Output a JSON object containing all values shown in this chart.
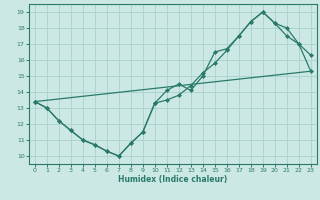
{
  "xlabel": "Humidex (Indice chaleur)",
  "bg_color": "#cce8e4",
  "line_color": "#2a7a6a",
  "grid_color": "#aed4d0",
  "xlim": [
    -0.5,
    23.5
  ],
  "ylim": [
    9.5,
    19.5
  ],
  "xticks": [
    0,
    1,
    2,
    3,
    4,
    5,
    6,
    7,
    8,
    9,
    10,
    11,
    12,
    13,
    14,
    15,
    16,
    17,
    18,
    19,
    20,
    21,
    22,
    23
  ],
  "yticks": [
    10,
    11,
    12,
    13,
    14,
    15,
    16,
    17,
    18,
    19
  ],
  "line1_x": [
    0,
    1,
    2,
    3,
    4,
    5,
    6,
    7,
    8,
    9,
    10,
    11,
    12,
    13,
    14,
    15,
    16,
    17,
    18,
    19,
    20,
    21,
    22,
    23
  ],
  "line1_y": [
    13.4,
    13.0,
    12.2,
    11.6,
    11.0,
    10.7,
    10.3,
    10.0,
    10.8,
    11.5,
    13.3,
    14.1,
    14.5,
    14.1,
    15.0,
    16.5,
    16.7,
    17.5,
    18.4,
    19.0,
    18.3,
    18.0,
    17.0,
    16.3
  ],
  "line2_x": [
    0,
    1,
    2,
    3,
    4,
    5,
    6,
    7,
    8,
    9,
    10,
    11,
    12,
    13,
    14,
    15,
    16,
    17,
    18,
    19,
    20,
    21,
    22,
    23
  ],
  "line2_y": [
    13.4,
    13.0,
    12.2,
    11.6,
    11.0,
    10.7,
    10.3,
    10.0,
    10.8,
    11.5,
    13.3,
    13.5,
    13.8,
    14.4,
    15.2,
    15.8,
    16.6,
    17.5,
    18.4,
    19.0,
    18.3,
    17.5,
    17.0,
    15.3
  ],
  "line3_x": [
    0,
    23
  ],
  "line3_y": [
    13.4,
    15.3
  ]
}
